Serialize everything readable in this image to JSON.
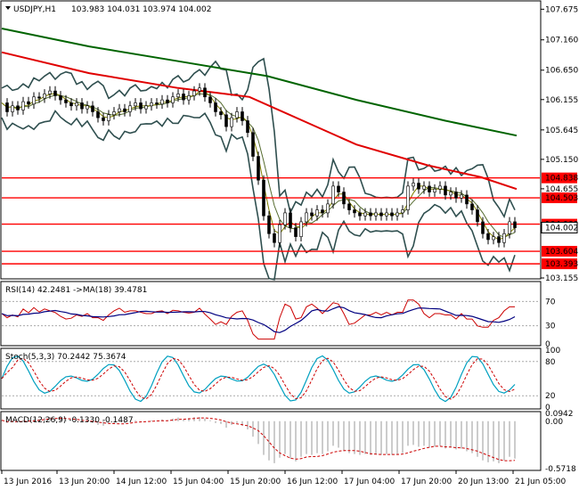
{
  "chart_data": [
    {
      "type": "candlestick",
      "name": "main",
      "title": "USDJPY,H1",
      "ohlc_header": "103.983 104.031 103.974 104.002",
      "ylim": [
        103.155,
        107.8
      ],
      "y_ticks": [
        "107.675",
        "107.160",
        "106.650",
        "106.155",
        "105.645",
        "105.150",
        "104.655",
        " 103.155"
      ],
      "levels": [
        {
          "label": "104.838",
          "value": 104.838
        },
        {
          "label": "104.503",
          "value": 104.503
        },
        {
          "label": "104.060",
          "value": 104.06
        },
        {
          "label": "104.002",
          "value": 104.002
        },
        {
          "label": "103.604",
          "value": 103.604
        },
        {
          "label": "103.393",
          "value": 103.393
        }
      ],
      "close_path": [
        [
          0,
          106.1
        ],
        [
          6,
          105.95
        ],
        [
          12,
          106.05
        ],
        [
          18,
          105.98
        ],
        [
          24,
          106.12
        ],
        [
          30,
          106.08
        ],
        [
          36,
          106.2
        ],
        [
          42,
          106.18
        ],
        [
          48,
          106.25
        ],
        [
          54,
          106.3
        ],
        [
          60,
          106.22
        ],
        [
          66,
          106.15
        ],
        [
          72,
          106.1
        ],
        [
          78,
          106.05
        ],
        [
          84,
          106.1
        ],
        [
          90,
          106.0
        ],
        [
          96,
          106.05
        ],
        [
          102,
          105.95
        ],
        [
          108,
          105.85
        ],
        [
          114,
          105.8
        ],
        [
          120,
          105.9
        ],
        [
          126,
          105.95
        ],
        [
          132,
          106.0
        ],
        [
          138,
          105.95
        ],
        [
          144,
          106.05
        ],
        [
          150,
          106.1
        ],
        [
          156,
          106.0
        ],
        [
          162,
          106.05
        ],
        [
          168,
          106.1
        ],
        [
          174,
          106.08
        ],
        [
          180,
          106.15
        ],
        [
          186,
          106.1
        ],
        [
          192,
          106.2
        ],
        [
          198,
          106.25
        ],
        [
          204,
          106.15
        ],
        [
          210,
          106.22
        ],
        [
          216,
          106.3
        ],
        [
          222,
          106.35
        ],
        [
          228,
          106.2
        ],
        [
          234,
          106.1
        ],
        [
          240,
          105.95
        ],
        [
          246,
          105.9
        ],
        [
          252,
          105.7
        ],
        [
          258,
          105.85
        ],
        [
          264,
          105.95
        ],
        [
          270,
          105.8
        ],
        [
          276,
          105.6
        ],
        [
          282,
          105.2
        ],
        [
          288,
          104.8
        ],
        [
          294,
          104.2
        ],
        [
          300,
          103.9
        ],
        [
          306,
          103.75
        ],
        [
          312,
          104.05
        ],
        [
          318,
          104.25
        ],
        [
          324,
          104.0
        ],
        [
          330,
          103.85
        ],
        [
          336,
          104.1
        ],
        [
          342,
          104.25
        ],
        [
          348,
          104.2
        ],
        [
          354,
          104.3
        ],
        [
          360,
          104.25
        ],
        [
          366,
          104.4
        ],
        [
          372,
          104.7
        ],
        [
          378,
          104.6
        ],
        [
          384,
          104.4
        ],
        [
          390,
          104.3
        ],
        [
          396,
          104.25
        ],
        [
          402,
          104.2
        ],
        [
          408,
          104.25
        ],
        [
          414,
          104.2
        ],
        [
          420,
          104.25
        ],
        [
          426,
          104.2
        ],
        [
          432,
          104.25
        ],
        [
          438,
          104.2
        ],
        [
          444,
          104.25
        ],
        [
          450,
          104.3
        ],
        [
          456,
          104.7
        ],
        [
          462,
          104.75
        ],
        [
          468,
          104.65
        ],
        [
          474,
          104.7
        ],
        [
          480,
          104.6
        ],
        [
          486,
          104.65
        ],
        [
          492,
          104.7
        ],
        [
          498,
          104.55
        ],
        [
          504,
          104.6
        ],
        [
          510,
          104.5
        ],
        [
          516,
          104.55
        ],
        [
          522,
          104.4
        ],
        [
          528,
          104.3
        ],
        [
          534,
          104.1
        ],
        [
          540,
          103.9
        ],
        [
          546,
          103.8
        ],
        [
          552,
          103.85
        ],
        [
          558,
          103.75
        ],
        [
          564,
          103.9
        ],
        [
          570,
          104.1
        ],
        [
          576,
          104.0
        ]
      ]
    },
    {
      "type": "line",
      "name": "rsi",
      "title": "RSI(14) 42.2481  ->MA(18) 39.4781",
      "ylim": [
        0,
        100
      ],
      "y_ticks": [
        "70",
        "30",
        "0"
      ]
    },
    {
      "type": "line",
      "name": "stochastic",
      "title": "Stoch(5,3,3) 70.2442 75.3674",
      "ylim": [
        0,
        100
      ],
      "y_ticks": [
        "100",
        "80",
        "20",
        "0"
      ]
    },
    {
      "type": "bar",
      "name": "macd",
      "title": "MACD(12,26,9) -0.1330 -0.1487",
      "ylim": [
        -0.5718,
        0.0942
      ],
      "y_ticks": [
        "0.0942",
        "0.00",
        "-0.5718"
      ]
    }
  ],
  "x_axis": {
    "ticks": [
      "13 Jun 2016",
      "13 Jun 20:00",
      "14 Jun 12:00",
      "15 Jun 04:00",
      "15 Jun 20:00",
      "16 Jun 12:00",
      "17 Jun 04:00",
      "17 Jun 20:00",
      "20 Jun 13:00",
      "21 Jun 05:00"
    ]
  },
  "colors": {
    "ma_long": "#006400",
    "ma_mid": "#e00000",
    "level": "#ff0000",
    "level_label_bg": "#ff0000",
    "band": "#2f4f4f",
    "rsi": "#cc0000",
    "rsi_ma": "#000080",
    "stoch_main": "#00a0c0",
    "stoch_signal": "#cc0000",
    "macd_signal": "#cc0000"
  }
}
